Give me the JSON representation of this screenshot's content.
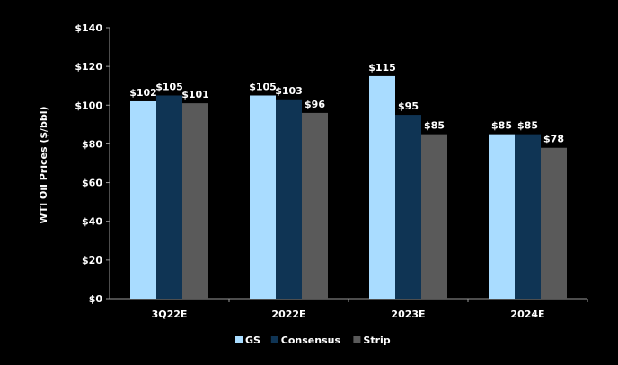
{
  "colors": {
    "background": "#000000",
    "axis": "#9a9a9a",
    "text": "#ffffff"
  },
  "chart_data": {
    "type": "bar",
    "ylabel": "WTI Oil Prices ($/bbl)",
    "xlabel": "",
    "ylim": [
      0,
      140
    ],
    "y_ticks": [
      0,
      20,
      40,
      60,
      80,
      100,
      120,
      140
    ],
    "y_tick_labels": [
      "$0",
      "$20",
      "$40",
      "$60",
      "$80",
      "$100",
      "$120",
      "$140"
    ],
    "categories": [
      "3Q22E",
      "2022E",
      "2023E",
      "2024E"
    ],
    "series": [
      {
        "name": "GS",
        "color": "#a9dcff",
        "values": [
          102,
          105,
          115,
          85
        ],
        "labels": [
          "$102",
          "$105",
          "$115",
          "$85"
        ]
      },
      {
        "name": "Consensus",
        "color": "#0f3454",
        "values": [
          105,
          103,
          95,
          85
        ],
        "labels": [
          "$105",
          "$103",
          "$95",
          "$85"
        ]
      },
      {
        "name": "Strip",
        "color": "#5a5a5a",
        "values": [
          101,
          96,
          85,
          78
        ],
        "labels": [
          "$101",
          "$96",
          "$85",
          "$78"
        ]
      }
    ],
    "grid": false,
    "legend_position": "bottom"
  }
}
